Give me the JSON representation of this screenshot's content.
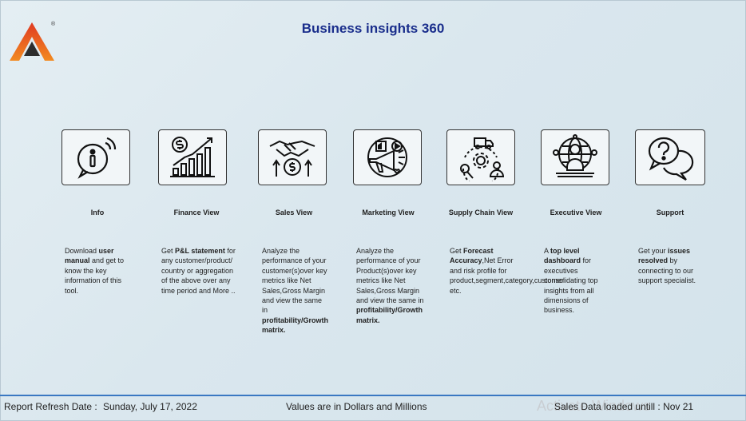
{
  "header": {
    "title": "Business insights 360"
  },
  "logo": {
    "registered_mark": "®"
  },
  "cards": [
    {
      "label": "Info",
      "icon": "info-icon",
      "desc": [
        {
          "t": "Download "
        },
        {
          "t": "user manual",
          "b": true
        },
        {
          "t": " and get to know the key information of this tool."
        }
      ]
    },
    {
      "label": "Finance View",
      "icon": "finance-chart-icon",
      "desc": [
        {
          "t": "Get "
        },
        {
          "t": "P&L statement",
          "b": true
        },
        {
          "t": " for any customer/product/ country or aggregation of the above over any time period and More .."
        }
      ]
    },
    {
      "label": "Sales View",
      "icon": "handshake-icon",
      "desc": [
        {
          "t": "Analyze the performance of your customer(s)over key metrics like Net Sales,Gross Margin and view the same in "
        },
        {
          "t": "profitability/Growth matrix.",
          "b": true
        }
      ]
    },
    {
      "label": "Marketing View",
      "icon": "megaphone-icon",
      "desc": [
        {
          "t": "Analyze the performance of your Product(s)over key metrics like Net Sales,Gross Margin and view the same in "
        },
        {
          "t": "profitability/Growth matrix.",
          "b": true
        }
      ]
    },
    {
      "label": "Supply Chain View",
      "icon": "supply-chain-icon",
      "desc": [
        {
          "t": "Get "
        },
        {
          "t": "Forecast Accuracy",
          "b": true
        },
        {
          "t": ",Net Error and risk profile for product,segment,category,customer etc."
        }
      ]
    },
    {
      "label": "Executive View",
      "icon": "executive-icon",
      "desc": [
        {
          "t": "A "
        },
        {
          "t": "top level dashboard",
          "b": true
        },
        {
          "t": " for executives consolidating top insights from all dimensions of business."
        }
      ]
    },
    {
      "label": "Support",
      "icon": "speech-bubbles-icon",
      "desc": [
        {
          "t": "Get your "
        },
        {
          "t": "issues resolved",
          "b": true
        },
        {
          "t": " by connecting to our support specialist."
        }
      ]
    }
  ],
  "footer": {
    "refresh_label": "Report Refresh Date :",
    "refresh_date": "Sunday, July 17, 2022",
    "units_note": "Values are in Dollars and Millions",
    "sales_loaded": "Sales Data loaded untill : Nov 21",
    "watermark": "Activate Windows"
  },
  "colors": {
    "title": "#1a2e8c",
    "rule": "#3a78c2",
    "logo_red": "#e03a22",
    "logo_orange": "#f28a20",
    "logo_dark": "#2d2d2d"
  }
}
